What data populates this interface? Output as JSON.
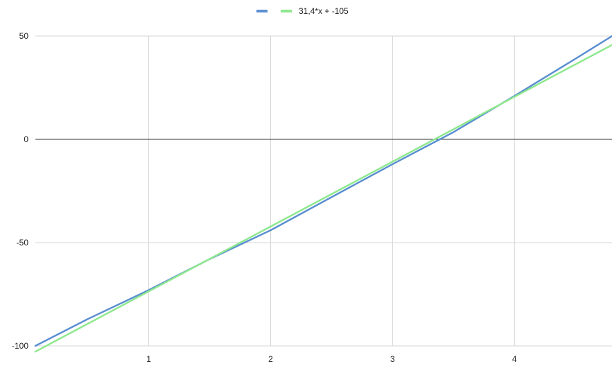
{
  "chart_data": {
    "type": "line",
    "title": "",
    "xlabel": "",
    "ylabel": "",
    "xlim": [
      0.07,
      4.8
    ],
    "ylim": [
      -100,
      50
    ],
    "x_ticks": [
      1,
      2,
      3,
      4
    ],
    "y_ticks": [
      -100,
      -50,
      0,
      50
    ],
    "grid": true,
    "legend_position": "top-center",
    "series": [
      {
        "name": "",
        "color": "#5b8fd1",
        "x": [
          0.07,
          0.5,
          1.0,
          1.5,
          2.0,
          2.5,
          3.0,
          3.5,
          4.0,
          4.5,
          4.8
        ],
        "y": [
          -100,
          -87,
          -73,
          -58,
          -44,
          -28,
          -12,
          3.5,
          21,
          39,
          50
        ]
      },
      {
        "name": "31,4*x + -105",
        "color": "#8ee88e",
        "x": [
          0.07,
          4.8
        ],
        "y": [
          -102.8,
          45.7
        ]
      }
    ]
  }
}
